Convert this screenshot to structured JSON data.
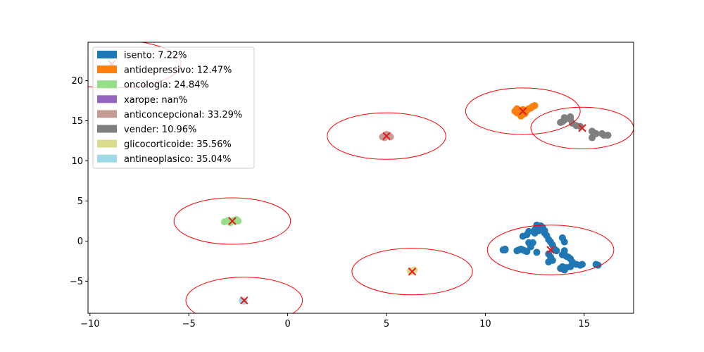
{
  "chart_data": {
    "type": "scatter",
    "title": "",
    "xlabel": "",
    "ylabel": "",
    "xlim": [
      -10.1,
      17.5
    ],
    "ylim": [
      -9.0,
      24.8
    ],
    "x_ticks": [
      -10,
      -5,
      0,
      5,
      10,
      15
    ],
    "x_tick_labels": [
      "−10",
      "−5",
      "0",
      "5",
      "10",
      "15"
    ],
    "y_ticks": [
      -5,
      0,
      5,
      10,
      15,
      20
    ],
    "y_tick_labels": [
      "−5",
      "0",
      "5",
      "10",
      "15",
      "20"
    ],
    "grid": false,
    "legend_position": "upper-left",
    "legend": [
      {
        "label": "isento: 7.22%",
        "color": "#1f77b4"
      },
      {
        "label": "antidepressivo: 12.47%",
        "color": "#ff7f0e"
      },
      {
        "label": "oncologia: 24.84%",
        "color": "#98df8a"
      },
      {
        "label": "xarope: nan%",
        "color": "#9467bd"
      },
      {
        "label": "anticoncepcional: 33.29%",
        "color": "#c49c94"
      },
      {
        "label": "vender: 10.96%",
        "color": "#7f7f7f"
      },
      {
        "label": "glicocorticoide: 35.56%",
        "color": "#dbdb8d"
      },
      {
        "label": "antineoplasico: 35.04%",
        "color": "#9edae5"
      }
    ],
    "centroid_color": "#e41a1c",
    "circle_color": "#ff0000",
    "series": [
      {
        "color": "#1f77b4",
        "points": [
          [
            11.0,
            -1.1
          ],
          [
            10.9,
            -1.1
          ],
          [
            11.0,
            -1.0
          ],
          [
            11.7,
            -1.1
          ],
          [
            11.8,
            -1.0
          ],
          [
            11.9,
            -1.1
          ],
          [
            12.0,
            -1.2
          ],
          [
            11.6,
            -1.2
          ],
          [
            12.1,
            -1.3
          ],
          [
            12.3,
            -0.7
          ],
          [
            12.2,
            -0.2
          ],
          [
            12.4,
            -0.2
          ],
          [
            11.9,
            0.6
          ],
          [
            12.1,
            0.8
          ],
          [
            12.2,
            1.2
          ],
          [
            12.5,
            1.0
          ],
          [
            12.5,
            1.4
          ],
          [
            12.6,
            1.6
          ],
          [
            12.7,
            1.3
          ],
          [
            12.8,
            1.8
          ],
          [
            12.9,
            1.7
          ],
          [
            12.6,
            2.0
          ],
          [
            12.8,
            1.9
          ],
          [
            13.0,
            1.3
          ],
          [
            13.0,
            1.0
          ],
          [
            13.1,
            0.7
          ],
          [
            13.2,
            0.2
          ],
          [
            13.3,
            -0.1
          ],
          [
            13.4,
            -0.5
          ],
          [
            13.5,
            -1.0
          ],
          [
            12.6,
            -1.4
          ],
          [
            13.2,
            -1.6
          ],
          [
            13.3,
            -2.0
          ],
          [
            13.2,
            -2.6
          ],
          [
            13.4,
            -2.4
          ],
          [
            13.8,
            -3.4
          ],
          [
            13.9,
            -3.2
          ],
          [
            14.0,
            -3.6
          ],
          [
            14.1,
            -3.3
          ],
          [
            14.3,
            -3.2
          ],
          [
            13.9,
            -1.7
          ],
          [
            14.0,
            -1.2
          ],
          [
            14.1,
            -1.9
          ],
          [
            14.2,
            -2.0
          ],
          [
            14.3,
            -2.2
          ],
          [
            14.4,
            -2.6
          ],
          [
            14.6,
            -2.9
          ],
          [
            14.8,
            -3.0
          ],
          [
            14.9,
            -2.9
          ],
          [
            15.6,
            -2.9
          ],
          [
            15.7,
            -3.0
          ],
          [
            14.0,
            -0.1
          ],
          [
            13.9,
            0.4
          ],
          [
            13.6,
            -1.2
          ]
        ]
      },
      {
        "color": "#ff7f0e",
        "points": [
          [
            11.5,
            16.2
          ],
          [
            11.6,
            16.5
          ],
          [
            11.7,
            16.3
          ],
          [
            11.8,
            16.0
          ],
          [
            11.9,
            15.8
          ],
          [
            11.9,
            16.4
          ],
          [
            12.0,
            16.1
          ],
          [
            12.1,
            16.3
          ],
          [
            12.2,
            16.5
          ],
          [
            12.3,
            16.6
          ],
          [
            12.4,
            16.8
          ],
          [
            12.5,
            16.9
          ],
          [
            11.8,
            15.6
          ],
          [
            12.0,
            15.9
          ],
          [
            11.6,
            16.0
          ]
        ]
      },
      {
        "color": "#98df8a",
        "points": [
          [
            -3.2,
            2.4
          ],
          [
            -3.0,
            2.6
          ],
          [
            -2.8,
            2.5
          ],
          [
            -2.6,
            2.7
          ],
          [
            -2.5,
            2.5
          ],
          [
            -2.9,
            2.3
          ],
          [
            -2.7,
            2.6
          ]
        ]
      },
      {
        "color": "#c49c94",
        "points": [
          [
            4.8,
            13.0
          ],
          [
            5.0,
            13.3
          ],
          [
            5.2,
            13.0
          ],
          [
            4.9,
            12.9
          ],
          [
            5.1,
            13.2
          ]
        ]
      },
      {
        "color": "#7f7f7f",
        "points": [
          [
            13.8,
            14.8
          ],
          [
            14.0,
            15.1
          ],
          [
            14.0,
            15.4
          ],
          [
            14.3,
            15.2
          ],
          [
            14.4,
            14.7
          ],
          [
            14.6,
            14.4
          ],
          [
            14.8,
            14.3
          ],
          [
            15.4,
            13.7
          ],
          [
            15.5,
            13.5
          ],
          [
            15.6,
            13.4
          ],
          [
            15.4,
            12.9
          ],
          [
            15.9,
            13.4
          ],
          [
            16.0,
            13.2
          ],
          [
            16.2,
            13.2
          ],
          [
            14.3,
            15.5
          ],
          [
            13.9,
            14.9
          ]
        ]
      },
      {
        "color": "#dbdb8d",
        "points": [
          [
            6.2,
            -3.7
          ],
          [
            6.4,
            -3.6
          ],
          [
            6.3,
            -3.8
          ]
        ]
      },
      {
        "color": "#9edae5",
        "points": [
          [
            -2.3,
            -7.4
          ],
          [
            -2.2,
            -7.5
          ]
        ]
      }
    ],
    "centroids": [
      [
        13.3,
        -1.1
      ],
      [
        11.9,
        16.2
      ],
      [
        -2.8,
        2.5
      ],
      [
        5.0,
        13.1
      ],
      [
        14.9,
        14.1
      ],
      [
        6.3,
        -3.8
      ],
      [
        -2.2,
        -7.4
      ],
      [
        -8.9,
        22.1
      ]
    ],
    "circles": [
      {
        "center": [
          13.3,
          -1.1
        ],
        "rx": 3.2,
        "ry": 3.1
      },
      {
        "center": [
          11.9,
          16.2
        ],
        "rx": 2.9,
        "ry": 2.9
      },
      {
        "center": [
          14.9,
          14.1
        ],
        "rx": 2.6,
        "ry": 2.6
      },
      {
        "center": [
          5.0,
          13.1
        ],
        "rx": 3.0,
        "ry": 2.9
      },
      {
        "center": [
          -2.8,
          2.5
        ],
        "rx": 2.95,
        "ry": 2.9
      },
      {
        "center": [
          6.3,
          -3.8
        ],
        "rx": 3.05,
        "ry": 2.9
      },
      {
        "center": [
          -2.2,
          -7.4
        ],
        "rx": 2.95,
        "ry": 2.9
      },
      {
        "center": [
          -8.9,
          22.1
        ],
        "rx": 3.5,
        "ry": 3.0
      }
    ]
  }
}
